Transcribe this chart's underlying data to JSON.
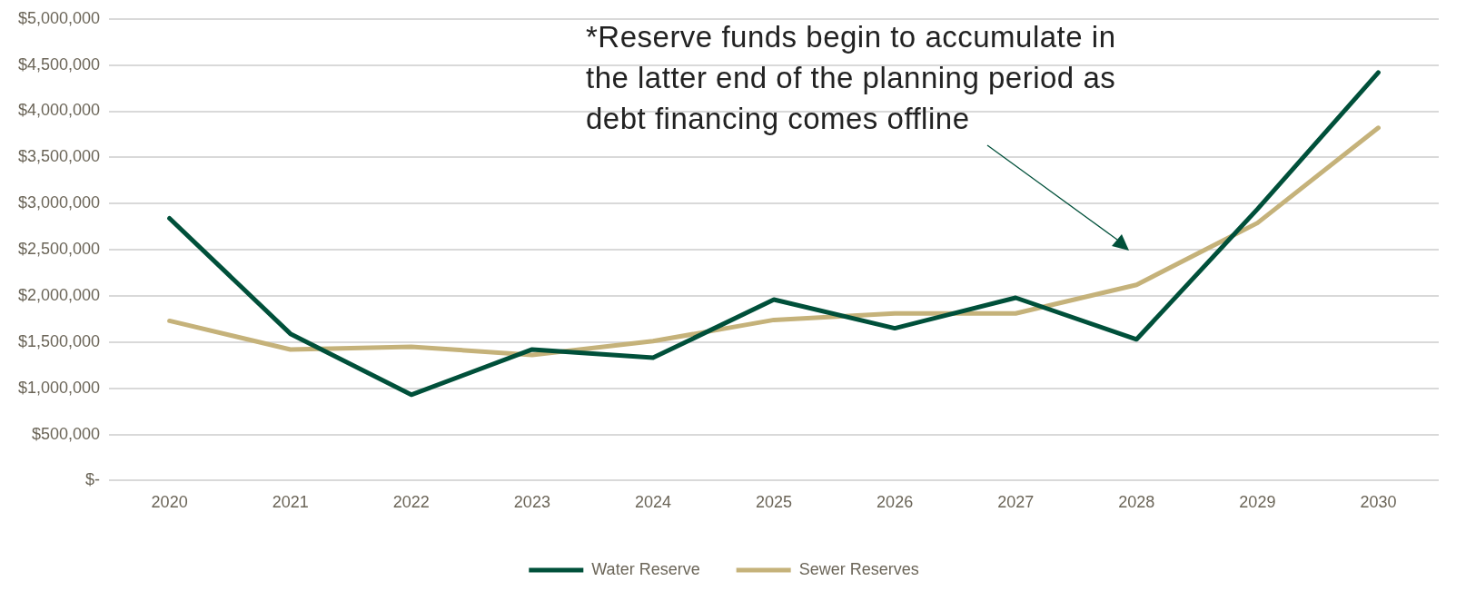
{
  "chart_data": {
    "type": "line",
    "categories": [
      "2020",
      "2021",
      "2022",
      "2023",
      "2024",
      "2025",
      "2026",
      "2027",
      "2028",
      "2029",
      "2030"
    ],
    "series": [
      {
        "name": "Water Reserve",
        "color": "#00503a",
        "values": [
          2840000,
          1590000,
          930000,
          1420000,
          1330000,
          1960000,
          1650000,
          1980000,
          1530000,
          2940000,
          4420000
        ]
      },
      {
        "name": "Sewer Reserves",
        "color": "#c5b27a",
        "values": [
          1730000,
          1420000,
          1450000,
          1360000,
          1510000,
          1740000,
          1810000,
          1810000,
          2120000,
          2790000,
          3820000
        ]
      }
    ],
    "ylim": [
      0,
      5000000
    ],
    "yticks": [
      {
        "value": 0,
        "label": "$-"
      },
      {
        "value": 500000,
        "label": "$500,000"
      },
      {
        "value": 1000000,
        "label": "$1,000,000"
      },
      {
        "value": 1500000,
        "label": "$1,500,000"
      },
      {
        "value": 2000000,
        "label": "$2,000,000"
      },
      {
        "value": 2500000,
        "label": "$2,500,000"
      },
      {
        "value": 3000000,
        "label": "$3,000,000"
      },
      {
        "value": 3500000,
        "label": "$3,500,000"
      },
      {
        "value": 4000000,
        "label": "$4,000,000"
      },
      {
        "value": 4500000,
        "label": "$4,500,000"
      },
      {
        "value": 5000000,
        "label": "$5,000,000"
      }
    ],
    "grid": "y",
    "legend": "bottom",
    "marker": "none",
    "line_style": "solid",
    "annotations": [
      "*Reserve funds begin to accumulate in the latter end of the planning period as debt financing comes offline"
    ]
  }
}
